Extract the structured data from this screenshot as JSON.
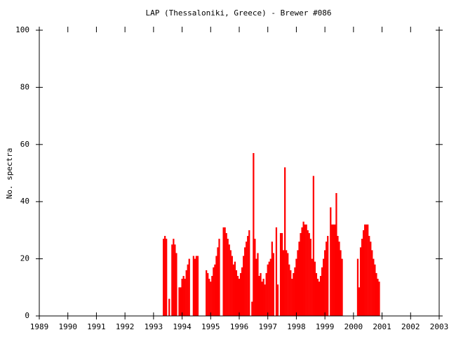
{
  "chart_data": {
    "type": "bar",
    "title": "LAP (Thessaloniki, Greece) - Brewer #086",
    "y_label": "No. spectra",
    "color": "#ff0000",
    "xlim": [
      1989,
      2003
    ],
    "xticks": [
      1989,
      1990,
      1991,
      1992,
      1993,
      1994,
      1995,
      1996,
      1997,
      1998,
      1999,
      2000,
      2001,
      2002,
      2003
    ],
    "ylim": [
      0,
      100
    ],
    "yticks": [
      0,
      20,
      40,
      60,
      80,
      100
    ],
    "x": [
      1993.35,
      1993.4,
      1993.45,
      1993.55,
      1993.65,
      1993.7,
      1993.75,
      1993.8,
      1993.9,
      1993.95,
      1994.0,
      1994.05,
      1994.1,
      1994.15,
      1994.2,
      1994.25,
      1994.4,
      1994.45,
      1994.5,
      1994.55,
      1994.85,
      1994.9,
      1994.95,
      1995.0,
      1995.05,
      1995.1,
      1995.15,
      1995.2,
      1995.25,
      1995.3,
      1995.45,
      1995.5,
      1995.55,
      1995.6,
      1995.65,
      1995.7,
      1995.75,
      1995.8,
      1995.85,
      1995.9,
      1995.95,
      1996.0,
      1996.05,
      1996.1,
      1996.15,
      1996.2,
      1996.25,
      1996.3,
      1996.35,
      1996.45,
      1996.5,
      1996.55,
      1996.6,
      1996.65,
      1996.7,
      1996.75,
      1996.8,
      1996.85,
      1996.9,
      1996.95,
      1997.0,
      1997.05,
      1997.1,
      1997.15,
      1997.2,
      1997.3,
      1997.35,
      1997.45,
      1997.5,
      1997.55,
      1997.6,
      1997.65,
      1997.7,
      1997.75,
      1997.8,
      1997.85,
      1997.9,
      1997.95,
      1998.0,
      1998.05,
      1998.1,
      1998.15,
      1998.2,
      1998.25,
      1998.3,
      1998.35,
      1998.4,
      1998.45,
      1998.5,
      1998.55,
      1998.6,
      1998.65,
      1998.7,
      1998.75,
      1998.8,
      1998.85,
      1998.9,
      1998.95,
      1999.0,
      1999.05,
      1999.1,
      1999.2,
      1999.25,
      1999.3,
      1999.35,
      1999.4,
      1999.45,
      1999.5,
      1999.55,
      1999.6,
      2000.15,
      2000.2,
      2000.25,
      2000.3,
      2000.35,
      2000.4,
      2000.45,
      2000.5,
      2000.55,
      2000.6,
      2000.65,
      2000.7,
      2000.75,
      2000.8,
      2000.85,
      2000.9
    ],
    "values": [
      27,
      28,
      27,
      6,
      25,
      27,
      25,
      22,
      10,
      10,
      13,
      14,
      13,
      16,
      18,
      20,
      21,
      20,
      21,
      21,
      16,
      15,
      13,
      12,
      14,
      17,
      18,
      21,
      24,
      27,
      31,
      31,
      29,
      27,
      25,
      23,
      21,
      18,
      19,
      16,
      14,
      13,
      15,
      17,
      21,
      24,
      26,
      28,
      30,
      5,
      57,
      27,
      20,
      22,
      14,
      15,
      12,
      13,
      11,
      15,
      18,
      19,
      20,
      26,
      22,
      31,
      11,
      29,
      29,
      23,
      52,
      23,
      22,
      18,
      16,
      13,
      15,
      17,
      20,
      23,
      26,
      29,
      31,
      33,
      32,
      32,
      30,
      29,
      27,
      20,
      49,
      19,
      15,
      13,
      12,
      14,
      17,
      20,
      23,
      26,
      28,
      38,
      32,
      32,
      32,
      43,
      28,
      26,
      23,
      20,
      20,
      10,
      24,
      27,
      30,
      32,
      32,
      32,
      28,
      26,
      23,
      20,
      18,
      15,
      13,
      12
    ]
  }
}
